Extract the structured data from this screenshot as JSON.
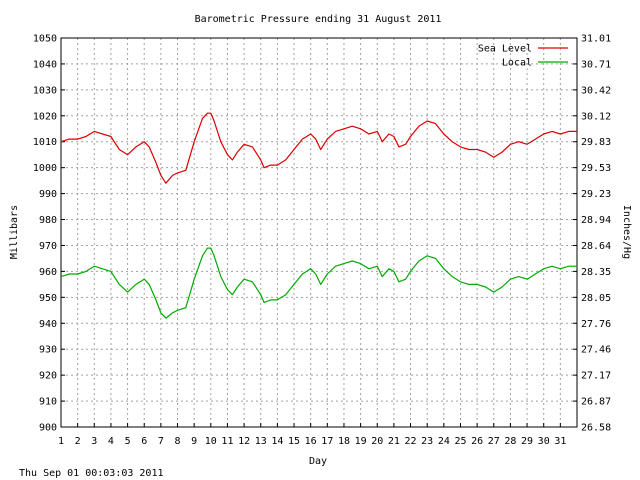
{
  "chart_data": {
    "type": "line",
    "title": "Barometric Pressure ending 31 August 2011",
    "xlabel": "Day",
    "ylabel_left": "Millibars",
    "ylabel_right": "Inches/Hg",
    "footer": "Thu Sep 01 00:03:03 2011",
    "xlim": [
      1,
      32
    ],
    "ylim": [
      900,
      1050
    ],
    "x_ticks": [
      1,
      2,
      3,
      4,
      5,
      6,
      7,
      8,
      9,
      10,
      11,
      12,
      13,
      14,
      15,
      16,
      17,
      18,
      19,
      20,
      21,
      22,
      23,
      24,
      25,
      26,
      27,
      28,
      29,
      30,
      31
    ],
    "y_ticks_left": [
      900,
      910,
      920,
      930,
      940,
      950,
      960,
      970,
      980,
      990,
      1000,
      1010,
      1020,
      1030,
      1040,
      1050
    ],
    "y_ticks_right": [
      "26.58",
      "26.87",
      "27.17",
      "27.46",
      "27.76",
      "28.05",
      "28.35",
      "28.64",
      "28.94",
      "29.23",
      "29.53",
      "29.83",
      "30.12",
      "30.42",
      "30.71",
      "31.01"
    ],
    "grid": true,
    "legend_position": "top-right",
    "series": [
      {
        "name": "Sea Level",
        "color": "#dd0000",
        "x": [
          1,
          1.5,
          2,
          2.5,
          3,
          3.5,
          4,
          4.5,
          5,
          5.5,
          6,
          6.3,
          6.7,
          7,
          7.3,
          7.7,
          8,
          8.5,
          9,
          9.5,
          9.8,
          10,
          10.2,
          10.6,
          11,
          11.3,
          11.6,
          12,
          12.5,
          13,
          13.2,
          13.6,
          14,
          14.5,
          15,
          15.5,
          16,
          16.3,
          16.6,
          17,
          17.5,
          18,
          18.5,
          19,
          19.5,
          20,
          20.3,
          20.7,
          21,
          21.3,
          21.7,
          22,
          22.5,
          23,
          23.5,
          24,
          24.5,
          25,
          25.5,
          26,
          26.5,
          27,
          27.5,
          28,
          28.5,
          29,
          29.5,
          30,
          30.5,
          31,
          31.5,
          32
        ],
        "y": [
          1010,
          1011,
          1011,
          1012,
          1014,
          1013,
          1012,
          1007,
          1005,
          1008,
          1010,
          1008,
          1002,
          997,
          994,
          997,
          998,
          999,
          1010,
          1019,
          1021,
          1021,
          1018,
          1010,
          1005,
          1003,
          1006,
          1009,
          1008,
          1003,
          1000,
          1001,
          1001,
          1003,
          1007,
          1011,
          1013,
          1011,
          1007,
          1011,
          1014,
          1015,
          1016,
          1015,
          1013,
          1014,
          1010,
          1013,
          1012,
          1008,
          1009,
          1012,
          1016,
          1018,
          1017,
          1013,
          1010,
          1008,
          1007,
          1007,
          1006,
          1004,
          1006,
          1009,
          1010,
          1009,
          1011,
          1013,
          1014,
          1013,
          1014,
          1014
        ]
      },
      {
        "name": "Local",
        "color": "#00aa00",
        "x": [
          1,
          1.5,
          2,
          2.5,
          3,
          3.5,
          4,
          4.5,
          5,
          5.5,
          6,
          6.3,
          6.7,
          7,
          7.3,
          7.7,
          8,
          8.5,
          9,
          9.5,
          9.8,
          10,
          10.2,
          10.6,
          11,
          11.3,
          11.6,
          12,
          12.5,
          13,
          13.2,
          13.6,
          14,
          14.5,
          15,
          15.5,
          16,
          16.3,
          16.6,
          17,
          17.5,
          18,
          18.5,
          19,
          19.5,
          20,
          20.3,
          20.7,
          21,
          21.3,
          21.7,
          22,
          22.5,
          23,
          23.5,
          24,
          24.5,
          25,
          25.5,
          26,
          26.5,
          27,
          27.5,
          28,
          28.5,
          29,
          29.5,
          30,
          30.5,
          31,
          31.5,
          32
        ],
        "y": [
          958,
          959,
          959,
          960,
          962,
          961,
          960,
          955,
          952,
          955,
          957,
          955,
          949,
          944,
          942,
          944,
          945,
          946,
          957,
          966,
          969,
          969,
          966,
          958,
          953,
          951,
          954,
          957,
          956,
          951,
          948,
          949,
          949,
          951,
          955,
          959,
          961,
          959,
          955,
          959,
          962,
          963,
          964,
          963,
          961,
          962,
          958,
          961,
          960,
          956,
          957,
          960,
          964,
          966,
          965,
          961,
          958,
          956,
          955,
          955,
          954,
          952,
          954,
          957,
          958,
          957,
          959,
          961,
          962,
          961,
          962,
          962
        ]
      }
    ]
  }
}
